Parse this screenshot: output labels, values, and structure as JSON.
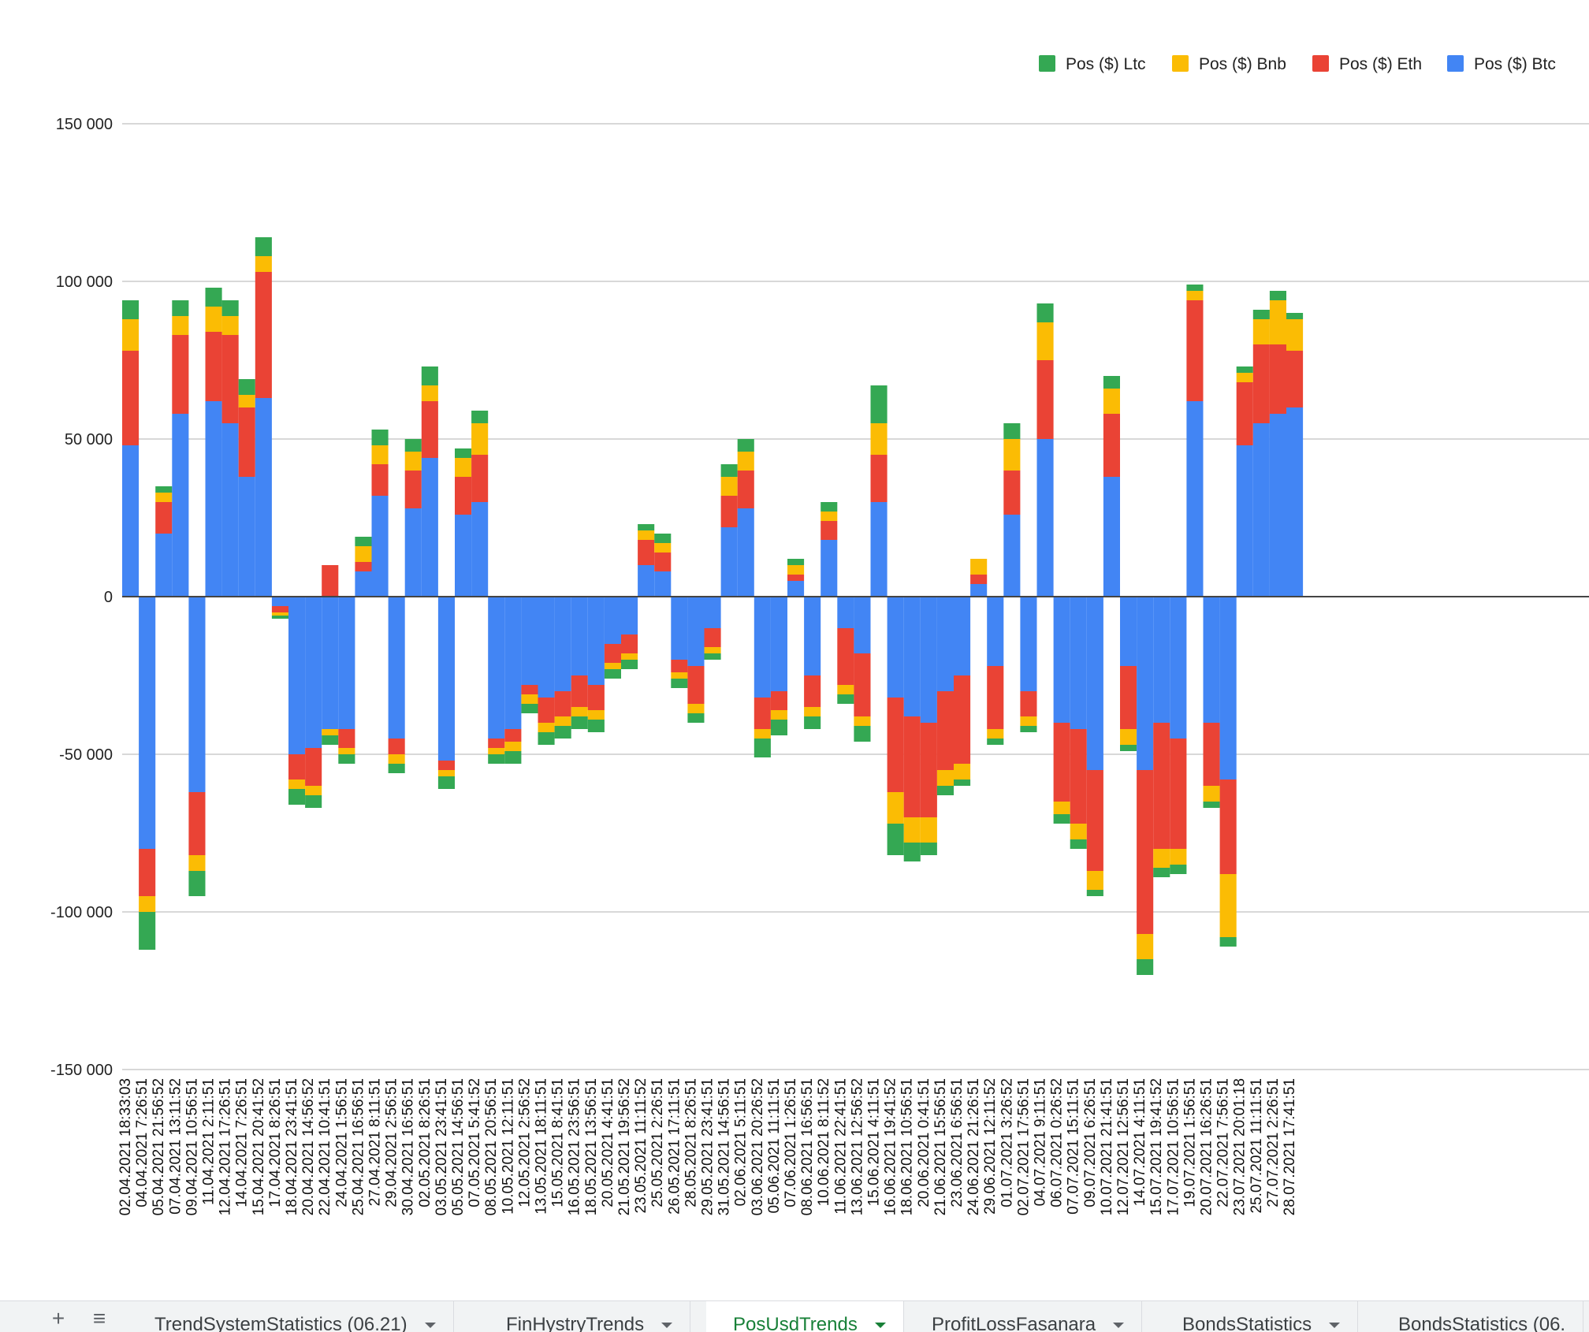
{
  "chart_data": {
    "type": "bar",
    "stacked": true,
    "title": "",
    "xlabel": "",
    "ylabel": "",
    "ylim": [
      -150000,
      150000
    ],
    "yticks": [
      150000,
      100000,
      50000,
      0,
      -50000,
      -100000,
      -150000
    ],
    "ytick_labels": [
      "150 000",
      "100 000",
      "50 000",
      "0",
      "-50 000",
      "-100 000",
      "-150 000"
    ],
    "grid": true,
    "legend_position": "top-right",
    "legend_order": [
      "Pos ($) Ltc",
      "Pos ($) Bnb",
      "Pos ($) Eth",
      "Pos ($) Btc"
    ],
    "x_tick_labels": [
      "02.04.2021 18:33:03",
      "04.04.2021 7:26:51",
      "05.04.2021 21:56:52",
      "07.04.2021 13:11:52",
      "09.04.2021 10:56:51",
      "11.04.2021 2:11:51",
      "12.04.2021 17:26:51",
      "14.04.2021 7:26:51",
      "15.04.2021 20:41:52",
      "17.04.2021 8:26:51",
      "18.04.2021 23:41:51",
      "20.04.2021 14:56:52",
      "22.04.2021 10:41:51",
      "24.04.2021 1:56:51",
      "25.04.2021 16:56:51",
      "27.04.2021 8:11:51",
      "29.04.2021 2:56:51",
      "30.04.2021 16:56:51",
      "02.05.2021 8:26:51",
      "03.05.2021 23:41:51",
      "05.05.2021 14:56:51",
      "07.05.2021 5:41:52",
      "08.05.2021 20:56:51",
      "10.05.2021 12:11:51",
      "12.05.2021 2:56:52",
      "13.05.2021 18:11:51",
      "15.05.2021 8:41:51",
      "16.05.2021 23:56:51",
      "18.05.2021 13:56:51",
      "20.05.2021 4:41:51",
      "21.05.2021 19:56:52",
      "23.05.2021 11:11:52",
      "25.05.2021 2:26:51",
      "26.05.2021 17:11:51",
      "28.05.2021 8:26:51",
      "29.05.2021 23:41:51",
      "31.05.2021 14:56:51",
      "02.06.2021 5:11:51",
      "03.06.2021 20:26:52",
      "05.06.2021 11:11:51",
      "07.06.2021 1:26:51",
      "08.06.2021 16:56:51",
      "10.06.2021 8:11:52",
      "11.06.2021 22:41:51",
      "13.06.2021 12:56:52",
      "15.06.2021 4:11:51",
      "16.06.2021 19:41:52",
      "18.06.2021 10:56:51",
      "20.06.2021 0:41:51",
      "21.06.2021 15:56:51",
      "23.06.2021 6:56:51",
      "24.06.2021 21:26:51",
      "29.06.2021 12:11:52",
      "01.07.2021 3:26:52",
      "02.07.2021 17:56:51",
      "04.07.2021 9:11:51",
      "06.07.2021 0:26:52",
      "07.07.2021 15:11:51",
      "09.07.2021 6:26:51",
      "10.07.2021 21:41:51",
      "12.07.2021 12:56:51",
      "14.07.2021 4:11:51",
      "15.07.2021 19:41:52",
      "17.07.2021 10:56:51",
      "19.07.2021 1:56:51",
      "20.07.2021 16:26:51",
      "22.07.2021 7:56:51",
      "23.07.2021 20:01:18",
      "25.07.2021 11:11:51",
      "27.07.2021 2:26:51",
      "28.07.2021 17:41:51"
    ],
    "series": [
      {
        "name": "Pos ($) Btc",
        "color": "#4285f4",
        "values": [
          48000,
          -80000,
          20000,
          58000,
          -62000,
          62000,
          55000,
          38000,
          63000,
          -3000,
          -50000,
          -48000,
          -42000,
          -42000,
          8000,
          32000,
          -45000,
          28000,
          44000,
          -52000,
          26000,
          30000,
          -45000,
          -42000,
          -28000,
          -32000,
          -30000,
          -25000,
          -28000,
          -15000,
          -12000,
          10000,
          8000,
          -20000,
          -22000,
          -10000,
          22000,
          28000,
          -32000,
          -30000,
          5000,
          -25000,
          18000,
          -10000,
          -18000,
          30000,
          -32000,
          -38000,
          -40000,
          -30000,
          -25000,
          4000,
          -22000,
          26000,
          -30000,
          50000,
          -40000,
          -42000,
          -55000,
          38000,
          -22000,
          -55000,
          -40000,
          -45000,
          62000,
          -40000,
          -58000,
          48000,
          55000,
          58000,
          60000
        ]
      },
      {
        "name": "Pos ($) Eth",
        "color": "#ea4335",
        "values": [
          30000,
          -15000,
          10000,
          25000,
          -20000,
          22000,
          28000,
          22000,
          40000,
          -2000,
          -8000,
          -12000,
          10000,
          -6000,
          3000,
          10000,
          -5000,
          12000,
          18000,
          -3000,
          12000,
          15000,
          -3000,
          -4000,
          -3000,
          -8000,
          -8000,
          -10000,
          -8000,
          -6000,
          -6000,
          8000,
          6000,
          -4000,
          -12000,
          -6000,
          10000,
          12000,
          -10000,
          -6000,
          2000,
          -10000,
          6000,
          -18000,
          -20000,
          15000,
          -30000,
          -32000,
          -30000,
          -25000,
          -28000,
          3000,
          -20000,
          14000,
          -8000,
          25000,
          -25000,
          -30000,
          -32000,
          20000,
          -20000,
          -52000,
          -40000,
          -35000,
          32000,
          -20000,
          -30000,
          20000,
          25000,
          22000,
          18000
        ]
      },
      {
        "name": "Pos ($) Bnb",
        "color": "#fbbc04",
        "values": [
          10000,
          -5000,
          3000,
          6000,
          -5000,
          8000,
          6000,
          4000,
          5000,
          -1000,
          -3000,
          -3000,
          -2000,
          -2000,
          5000,
          6000,
          -3000,
          6000,
          5000,
          -2000,
          6000,
          10000,
          -2000,
          -3000,
          -3000,
          -3000,
          -3000,
          -3000,
          -3000,
          -2000,
          -2000,
          3000,
          3000,
          -2000,
          -3000,
          -2000,
          6000,
          6000,
          -3000,
          -3000,
          3000,
          -3000,
          3000,
          -3000,
          -3000,
          10000,
          -10000,
          -8000,
          -8000,
          -5000,
          -5000,
          5000,
          -3000,
          10000,
          -3000,
          12000,
          -4000,
          -5000,
          -6000,
          8000,
          -5000,
          -8000,
          -6000,
          -5000,
          3000,
          -5000,
          -20000,
          3000,
          8000,
          14000,
          10000
        ]
      },
      {
        "name": "Pos ($) Ltc",
        "color": "#34a853",
        "values": [
          6000,
          -12000,
          2000,
          5000,
          -8000,
          6000,
          5000,
          5000,
          6000,
          -1000,
          -5000,
          -4000,
          -3000,
          -3000,
          3000,
          5000,
          -3000,
          4000,
          6000,
          -4000,
          3000,
          4000,
          -3000,
          -4000,
          -3000,
          -4000,
          -4000,
          -4000,
          -4000,
          -3000,
          -3000,
          2000,
          3000,
          -3000,
          -3000,
          -2000,
          4000,
          4000,
          -6000,
          -5000,
          2000,
          -4000,
          3000,
          -3000,
          -5000,
          12000,
          -10000,
          -6000,
          -4000,
          -3000,
          -2000,
          0,
          -2000,
          5000,
          -2000,
          6000,
          -3000,
          -3000,
          -2000,
          4000,
          -2000,
          -5000,
          -3000,
          -3000,
          2000,
          -2000,
          -3000,
          2000,
          3000,
          3000,
          2000
        ]
      }
    ]
  },
  "sheet_bar": {
    "add_icon": "plus-icon",
    "list_icon": "list-icon",
    "tabs": [
      {
        "label": "TrendSystemStatistics (06.21)",
        "active": false
      },
      {
        "label": "FinHystryTrends",
        "active": false
      },
      {
        "label": "PosUsdTrends",
        "active": true
      },
      {
        "label": "ProfitLossFasanara",
        "active": false
      },
      {
        "label": "BondsStatistics",
        "active": false
      },
      {
        "label": "BondsStatistics (06.",
        "active": false
      }
    ]
  }
}
